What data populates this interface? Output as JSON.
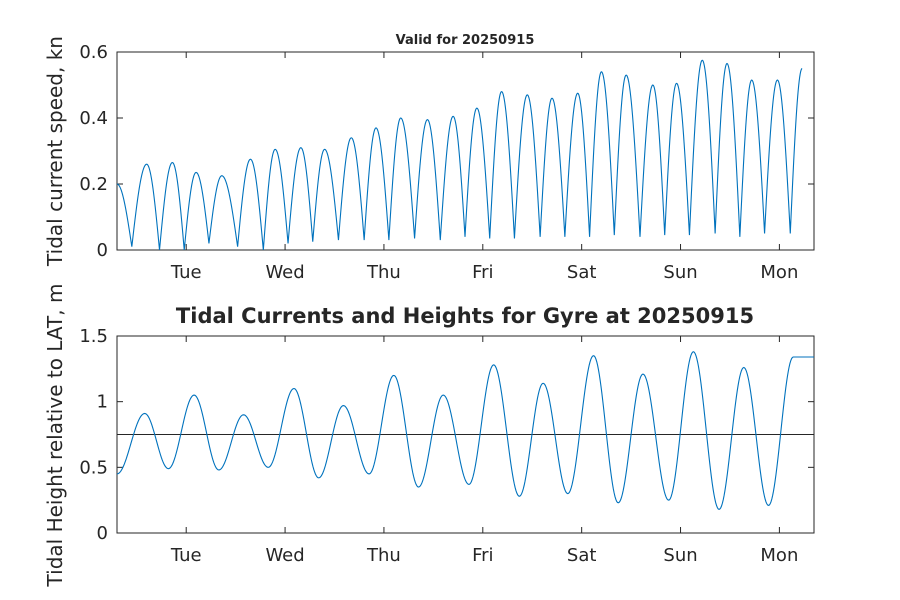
{
  "chart_data": [
    {
      "type": "line",
      "title": "Valid for 20250915",
      "ylabel": "Tidal current speed, kn",
      "ylim": [
        0,
        0.6
      ],
      "yticks": [
        0,
        0.2,
        0.4,
        0.6
      ],
      "ytick_labels": [
        "0",
        "0.2",
        "0.4",
        "0.6"
      ],
      "xlim": [
        0.3,
        7.35
      ],
      "xticks": [
        1,
        2,
        3,
        4,
        5,
        6,
        7
      ],
      "xtick_labels": [
        "Tue",
        "Wed",
        "Thu",
        "Fri",
        "Sat",
        "Sun",
        "Mon"
      ],
      "series": [
        {
          "color": "#0072BD",
          "peaks_x": [
            0.3,
            0.6,
            0.86,
            1.1,
            1.36,
            1.65,
            1.9,
            2.16,
            2.4,
            2.67,
            2.92,
            3.17,
            3.44,
            3.7,
            3.94,
            4.19,
            4.45,
            4.7,
            4.96,
            5.2,
            5.45,
            5.72,
            5.96,
            6.22,
            6.47,
            6.72,
            6.98,
            7.23
          ],
          "peaks_y": [
            0.2,
            0.26,
            0.265,
            0.235,
            0.225,
            0.275,
            0.305,
            0.31,
            0.305,
            0.34,
            0.37,
            0.4,
            0.395,
            0.405,
            0.43,
            0.48,
            0.47,
            0.46,
            0.475,
            0.54,
            0.53,
            0.5,
            0.505,
            0.575,
            0.565,
            0.515,
            0.515,
            0.55
          ],
          "troughs_x": [
            0.45,
            0.73,
            0.98,
            1.23,
            1.52,
            1.78,
            2.03,
            2.28,
            2.54,
            2.8,
            3.05,
            3.31,
            3.57,
            3.82,
            4.07,
            4.32,
            4.58,
            4.83,
            5.08,
            5.33,
            5.59,
            5.84,
            6.09,
            6.35,
            6.6,
            6.85,
            7.11
          ],
          "troughs_y": [
            0.01,
            0.0,
            0.0,
            0.02,
            0.01,
            0.0,
            0.02,
            0.025,
            0.03,
            0.03,
            0.03,
            0.035,
            0.03,
            0.04,
            0.035,
            0.035,
            0.04,
            0.04,
            0.04,
            0.045,
            0.04,
            0.045,
            0.045,
            0.05,
            0.04,
            0.05,
            0.05
          ]
        }
      ]
    },
    {
      "type": "line",
      "title": "Tidal Currents and Heights for Gyre at 20250915",
      "ylabel": "Tidal Height relative to LAT, m",
      "ylim": [
        0,
        1.5
      ],
      "yticks": [
        0,
        0.5,
        1,
        1.5
      ],
      "ytick_labels": [
        "0",
        "0.5",
        "1",
        "1.5"
      ],
      "xlim": [
        0.3,
        7.35
      ],
      "xticks": [
        1,
        2,
        3,
        4,
        5,
        6,
        7
      ],
      "xtick_labels": [
        "Tue",
        "Wed",
        "Thu",
        "Fri",
        "Sat",
        "Sun",
        "Mon"
      ],
      "reference_line_y": 0.75,
      "series": [
        {
          "color": "#0072BD",
          "extrema_x": [
            0.3,
            0.58,
            0.82,
            1.08,
            1.33,
            1.58,
            1.83,
            2.09,
            2.34,
            2.59,
            2.85,
            3.1,
            3.35,
            3.6,
            3.86,
            4.11,
            4.37,
            4.61,
            4.86,
            5.12,
            5.37,
            5.62,
            5.88,
            6.13,
            6.39,
            6.64,
            6.89,
            7.14,
            7.35
          ],
          "extrema_y": [
            0.45,
            0.91,
            0.49,
            1.05,
            0.48,
            0.9,
            0.5,
            1.1,
            0.42,
            0.97,
            0.45,
            1.2,
            0.35,
            1.05,
            0.37,
            1.28,
            0.28,
            1.14,
            0.3,
            1.35,
            0.23,
            1.21,
            0.25,
            1.38,
            0.18,
            1.26,
            0.21,
            1.34,
            1.34
          ]
        }
      ]
    }
  ]
}
